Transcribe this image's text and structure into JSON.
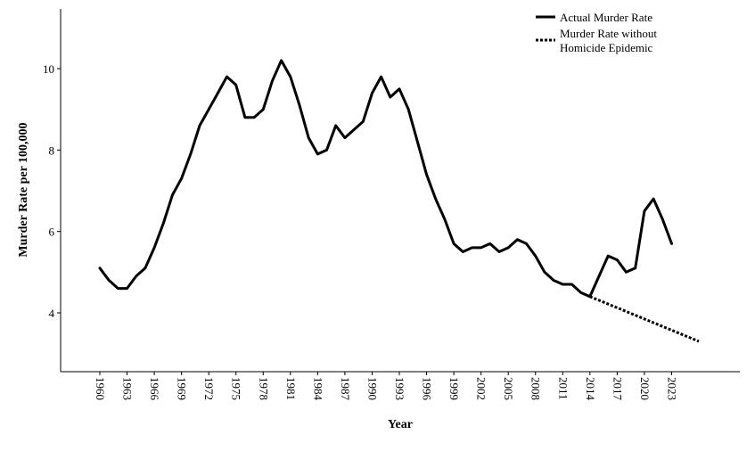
{
  "chart_data": {
    "type": "line",
    "title": "",
    "xlabel": "Year",
    "ylabel": "Murder Rate per 100,000",
    "xlim": [
      1959,
      2028
    ],
    "ylim": [
      2.6,
      11.5
    ],
    "x_ticks": [
      1960,
      1963,
      1966,
      1969,
      1972,
      1975,
      1978,
      1981,
      1984,
      1987,
      1990,
      1993,
      1996,
      1999,
      2002,
      2005,
      2008,
      2011,
      2014,
      2017,
      2020,
      2023
    ],
    "x_tick_labels": [
      "1960",
      "1963",
      "1966",
      "1969",
      "1972",
      "1975",
      "1978",
      "1981",
      "1984",
      "1987",
      "1990",
      "1993",
      "1996",
      "1999",
      "2002",
      "2005",
      "2008",
      "2011",
      "2014",
      "2017",
      "2020",
      "2023"
    ],
    "y_ticks": [
      4,
      6,
      8,
      10
    ],
    "y_tick_labels": [
      "4",
      "6",
      "8",
      "10"
    ],
    "grid": false,
    "legend_position": "top-right",
    "series": [
      {
        "name": "Actual Murder Rate",
        "style": "solid",
        "color": "#000000",
        "x": [
          1960,
          1961,
          1962,
          1963,
          1964,
          1965,
          1966,
          1967,
          1968,
          1969,
          1970,
          1971,
          1972,
          1973,
          1974,
          1975,
          1976,
          1977,
          1978,
          1979,
          1980,
          1981,
          1982,
          1983,
          1984,
          1985,
          1986,
          1987,
          1988,
          1989,
          1990,
          1991,
          1992,
          1993,
          1994,
          1995,
          1996,
          1997,
          1998,
          1999,
          2000,
          2001,
          2002,
          2003,
          2004,
          2005,
          2006,
          2007,
          2008,
          2009,
          2010,
          2011,
          2012,
          2013,
          2014,
          2015,
          2016,
          2017,
          2018,
          2019,
          2020,
          2021,
          2022,
          2023
        ],
        "values": [
          5.1,
          4.8,
          4.6,
          4.6,
          4.9,
          5.1,
          5.6,
          6.2,
          6.9,
          7.3,
          7.9,
          8.6,
          9.0,
          9.4,
          9.8,
          9.6,
          8.8,
          8.8,
          9.0,
          9.7,
          10.2,
          9.8,
          9.1,
          8.3,
          7.9,
          8.0,
          8.6,
          8.3,
          8.5,
          8.7,
          9.4,
          9.8,
          9.3,
          9.5,
          9.0,
          8.2,
          7.4,
          6.8,
          6.3,
          5.7,
          5.5,
          5.6,
          5.6,
          5.7,
          5.5,
          5.6,
          5.8,
          5.7,
          5.4,
          5.0,
          4.8,
          4.7,
          4.7,
          4.5,
          4.4,
          4.9,
          5.4,
          5.3,
          5.0,
          5.1,
          6.5,
          6.8,
          6.3,
          5.7
        ]
      },
      {
        "name": "Murder Rate without Homicide Epidemic",
        "name_lines": [
          "Murder Rate without",
          "Homicide Epidemic"
        ],
        "style": "dotted",
        "color": "#000000",
        "x": [
          2014,
          2026
        ],
        "values": [
          4.4,
          3.3
        ]
      }
    ]
  }
}
